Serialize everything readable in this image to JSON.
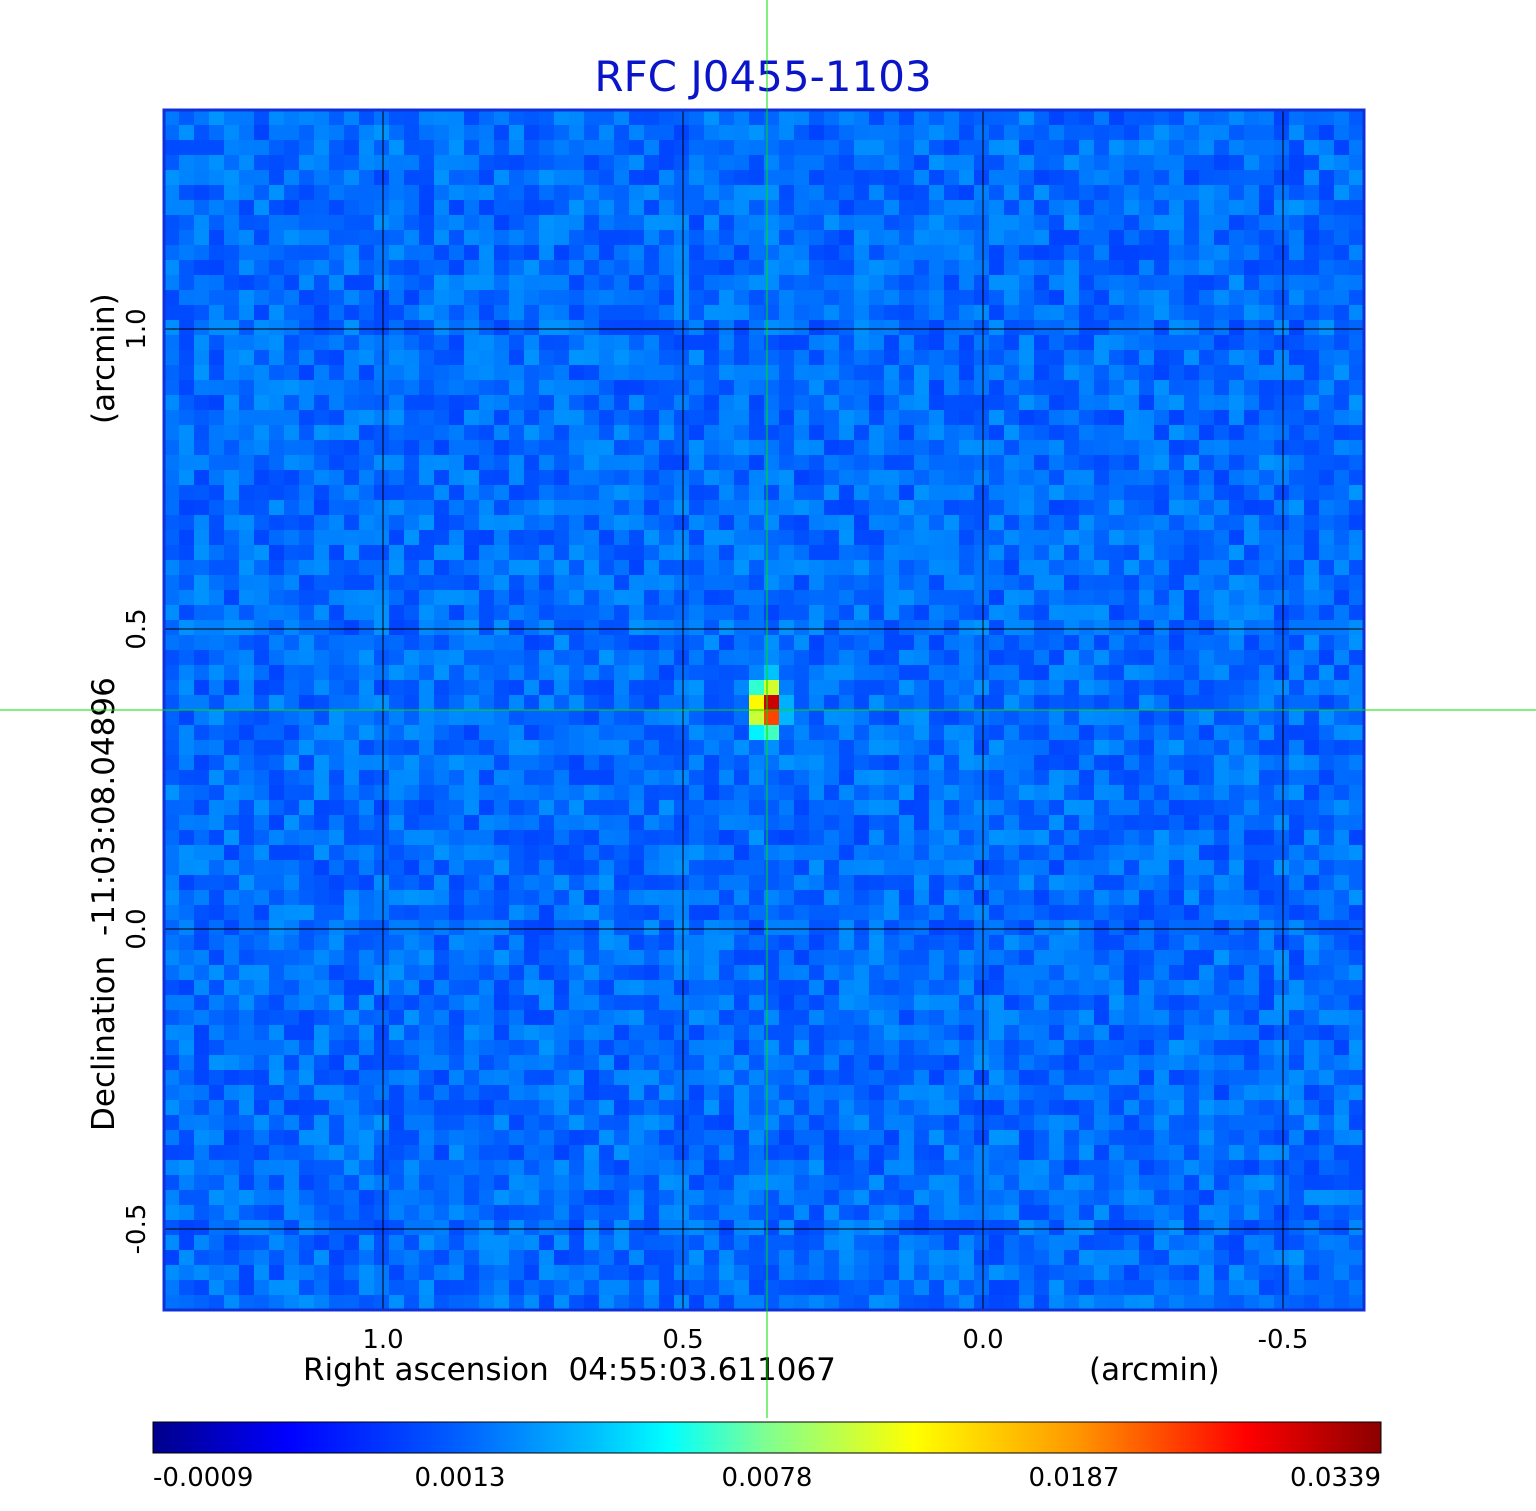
{
  "chart_data": {
    "type": "heatmap",
    "title": "RFC J0455-1103",
    "title_color": "#0a14c8",
    "xlabel": "Right ascension  04:55:03.611067",
    "xlabel_unit": "(arcmin)",
    "ylabel": "Declination  -11:03:08.04896",
    "ylabel_unit": "(arcmin)",
    "xlim": [
      1.365,
      -0.635
    ],
    "ylim": [
      -0.635,
      1.365
    ],
    "xticks": [
      1.0,
      0.5,
      0.0,
      -0.5
    ],
    "xtick_labels": [
      "1.0",
      "0.5",
      "0.0",
      "-0.5"
    ],
    "yticks": [
      1.0,
      0.5,
      0.0,
      -0.5
    ],
    "ytick_labels": [
      "1.0",
      "0.5",
      "0.0",
      "-0.5"
    ],
    "grid": true,
    "grid_color": "#000000",
    "crosshair": {
      "x": 0.36,
      "y": 0.365,
      "color": "#00e000"
    },
    "source_peak": {
      "x": 0.36,
      "y": 0.37,
      "value": 0.0339
    },
    "background_level": 0.0006,
    "colormap": "jet",
    "colorbar": {
      "tick_labels": [
        "-0.0009",
        "0.0013",
        "0.0078",
        "0.0187",
        "0.0339"
      ]
    }
  }
}
